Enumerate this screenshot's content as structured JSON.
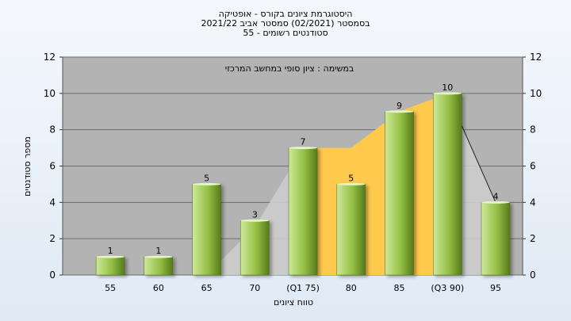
{
  "chart_data": {
    "type": "bar",
    "title_lines": [
      "היסטוגרמת ציונים בקורס - אופטיקה",
      "בסמסטר  (02/2021)  סמסטר אביב 2021/22",
      "סטודנטים רשומים - 55"
    ],
    "annotation": "במשימה : ציון סופי במחשב המרכזי",
    "xlabel": "טווח ציונים",
    "ylabel": "מספר סטודנטים",
    "categories": [
      "55",
      "60",
      "65",
      "70",
      "(Q1 75)",
      "80",
      "85",
      "(Q3 90)",
      "95"
    ],
    "values": [
      1,
      1,
      5,
      3,
      7,
      5,
      9,
      10,
      4
    ],
    "ylim": [
      0,
      12
    ],
    "yticks": [
      0,
      2,
      4,
      6,
      8,
      10,
      12
    ],
    "grid": true,
    "colors": {
      "plot_bg": "#b3b3b3",
      "bar_light": "#cfe89a",
      "bar_mid": "#93c043",
      "bar_dark": "#557a1c",
      "iqr_band": "#ffc94d",
      "gray_band": "#cccccc",
      "grid": "#6e6e6e"
    }
  }
}
